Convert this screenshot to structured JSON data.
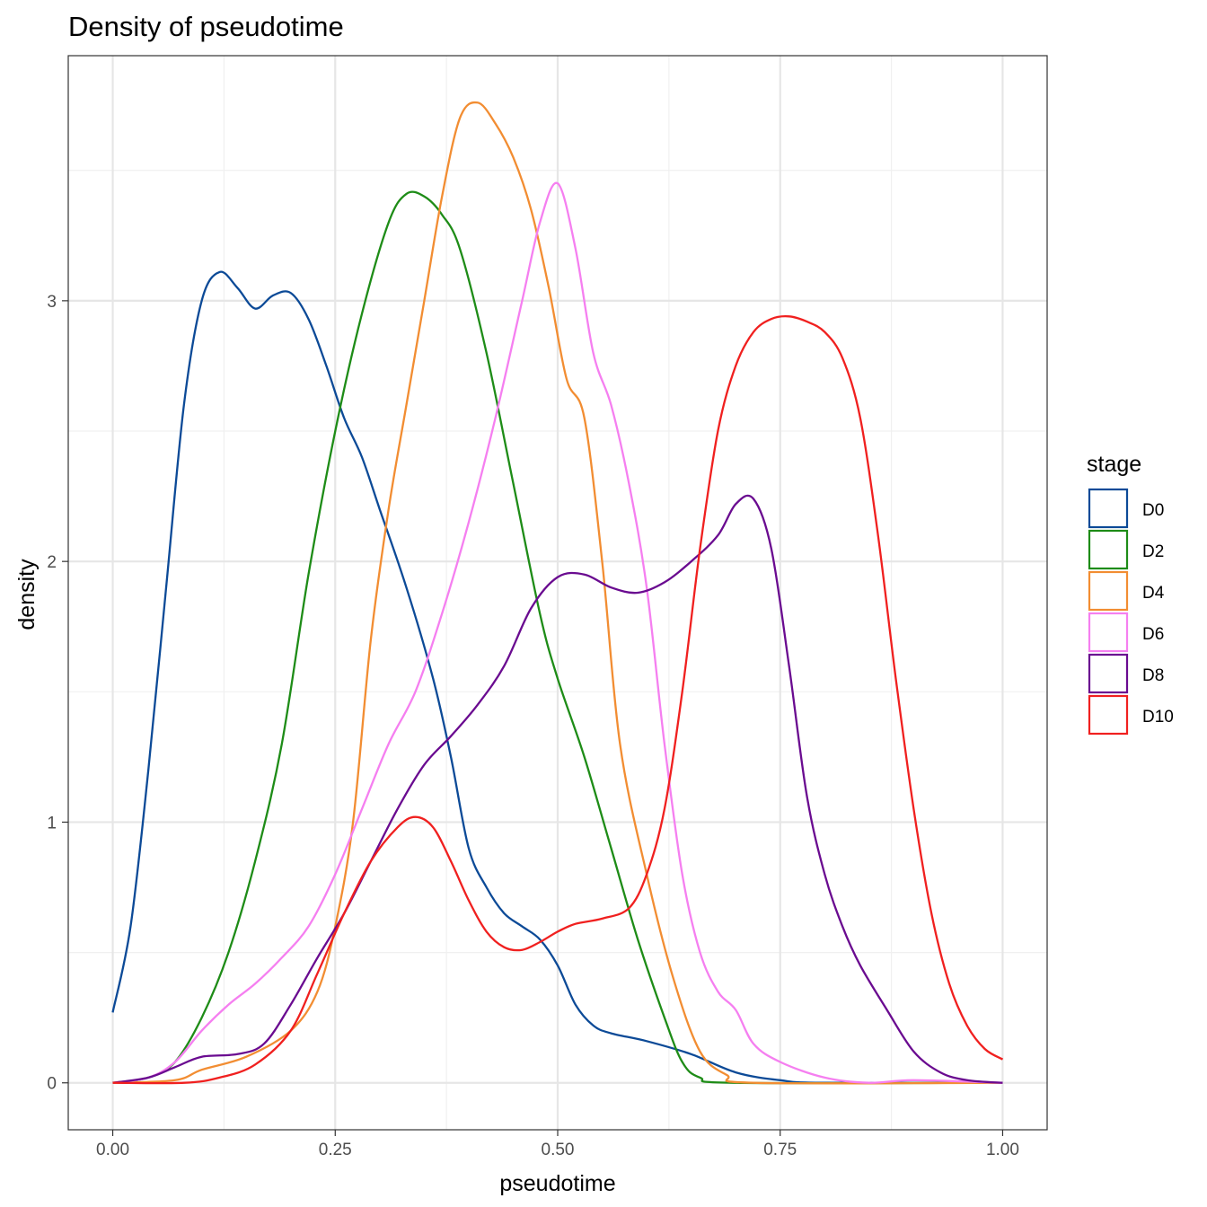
{
  "chart_data": {
    "type": "line",
    "title": "Density of pseudotime",
    "xlabel": "pseudotime",
    "ylabel": "density",
    "xlim": [
      -0.05,
      1.05
    ],
    "ylim": [
      -0.18,
      3.94
    ],
    "x_ticks": [
      0.0,
      0.25,
      0.5,
      0.75,
      1.0
    ],
    "x_tick_labels": [
      "0.00",
      "0.25",
      "0.50",
      "0.75",
      "1.00"
    ],
    "y_ticks": [
      0,
      1,
      2,
      3
    ],
    "y_tick_labels": [
      "0",
      "1",
      "2",
      "3"
    ],
    "grid": true,
    "legend_position": "right",
    "legend_title": "stage",
    "series": [
      {
        "name": "D0",
        "color": "#0c4a97",
        "points": [
          [
            0.0,
            0.27
          ],
          [
            0.02,
            0.6
          ],
          [
            0.04,
            1.2
          ],
          [
            0.06,
            1.9
          ],
          [
            0.08,
            2.6
          ],
          [
            0.1,
            3.0
          ],
          [
            0.12,
            3.11
          ],
          [
            0.14,
            3.05
          ],
          [
            0.16,
            2.97
          ],
          [
            0.18,
            3.02
          ],
          [
            0.2,
            3.03
          ],
          [
            0.22,
            2.93
          ],
          [
            0.24,
            2.75
          ],
          [
            0.26,
            2.55
          ],
          [
            0.28,
            2.4
          ],
          [
            0.3,
            2.2
          ],
          [
            0.33,
            1.9
          ],
          [
            0.36,
            1.55
          ],
          [
            0.38,
            1.25
          ],
          [
            0.4,
            0.9
          ],
          [
            0.42,
            0.75
          ],
          [
            0.44,
            0.65
          ],
          [
            0.46,
            0.6
          ],
          [
            0.48,
            0.55
          ],
          [
            0.5,
            0.45
          ],
          [
            0.52,
            0.3
          ],
          [
            0.54,
            0.22
          ],
          [
            0.56,
            0.19
          ],
          [
            0.6,
            0.16
          ],
          [
            0.65,
            0.11
          ],
          [
            0.7,
            0.04
          ],
          [
            0.75,
            0.01
          ],
          [
            0.8,
            0.0
          ],
          [
            1.0,
            0.0
          ]
        ]
      },
      {
        "name": "D2",
        "color": "#1e8c17",
        "points": [
          [
            0.0,
            0.0
          ],
          [
            0.04,
            0.02
          ],
          [
            0.07,
            0.08
          ],
          [
            0.1,
            0.25
          ],
          [
            0.13,
            0.5
          ],
          [
            0.16,
            0.85
          ],
          [
            0.19,
            1.3
          ],
          [
            0.22,
            1.95
          ],
          [
            0.25,
            2.5
          ],
          [
            0.28,
            2.95
          ],
          [
            0.31,
            3.3
          ],
          [
            0.33,
            3.41
          ],
          [
            0.35,
            3.4
          ],
          [
            0.37,
            3.33
          ],
          [
            0.39,
            3.2
          ],
          [
            0.42,
            2.8
          ],
          [
            0.45,
            2.3
          ],
          [
            0.48,
            1.8
          ],
          [
            0.5,
            1.55
          ],
          [
            0.53,
            1.25
          ],
          [
            0.56,
            0.9
          ],
          [
            0.59,
            0.55
          ],
          [
            0.62,
            0.25
          ],
          [
            0.64,
            0.08
          ],
          [
            0.66,
            0.02
          ],
          [
            0.7,
            0.0
          ],
          [
            1.0,
            0.0
          ]
        ]
      },
      {
        "name": "D4",
        "color": "#f28d32",
        "points": [
          [
            0.0,
            0.0
          ],
          [
            0.07,
            0.01
          ],
          [
            0.1,
            0.05
          ],
          [
            0.15,
            0.1
          ],
          [
            0.2,
            0.2
          ],
          [
            0.23,
            0.35
          ],
          [
            0.25,
            0.6
          ],
          [
            0.27,
            1.0
          ],
          [
            0.29,
            1.7
          ],
          [
            0.31,
            2.2
          ],
          [
            0.33,
            2.6
          ],
          [
            0.35,
            3.0
          ],
          [
            0.37,
            3.4
          ],
          [
            0.39,
            3.7
          ],
          [
            0.41,
            3.76
          ],
          [
            0.43,
            3.68
          ],
          [
            0.45,
            3.55
          ],
          [
            0.47,
            3.35
          ],
          [
            0.49,
            3.05
          ],
          [
            0.51,
            2.7
          ],
          [
            0.53,
            2.55
          ],
          [
            0.55,
            2.0
          ],
          [
            0.57,
            1.3
          ],
          [
            0.6,
            0.8
          ],
          [
            0.63,
            0.4
          ],
          [
            0.66,
            0.12
          ],
          [
            0.69,
            0.03
          ],
          [
            0.72,
            0.0
          ],
          [
            1.0,
            0.0
          ]
        ]
      },
      {
        "name": "D6",
        "color": "#f57ff0",
        "points": [
          [
            0.0,
            0.0
          ],
          [
            0.04,
            0.02
          ],
          [
            0.07,
            0.08
          ],
          [
            0.1,
            0.2
          ],
          [
            0.13,
            0.3
          ],
          [
            0.16,
            0.38
          ],
          [
            0.19,
            0.48
          ],
          [
            0.22,
            0.6
          ],
          [
            0.25,
            0.8
          ],
          [
            0.28,
            1.05
          ],
          [
            0.31,
            1.3
          ],
          [
            0.34,
            1.5
          ],
          [
            0.37,
            1.8
          ],
          [
            0.4,
            2.15
          ],
          [
            0.43,
            2.55
          ],
          [
            0.46,
            3.0
          ],
          [
            0.48,
            3.3
          ],
          [
            0.5,
            3.45
          ],
          [
            0.52,
            3.2
          ],
          [
            0.54,
            2.8
          ],
          [
            0.56,
            2.6
          ],
          [
            0.58,
            2.3
          ],
          [
            0.6,
            1.9
          ],
          [
            0.62,
            1.3
          ],
          [
            0.64,
            0.8
          ],
          [
            0.66,
            0.5
          ],
          [
            0.68,
            0.35
          ],
          [
            0.7,
            0.28
          ],
          [
            0.72,
            0.15
          ],
          [
            0.75,
            0.08
          ],
          [
            0.8,
            0.02
          ],
          [
            0.85,
            0.0
          ],
          [
            0.9,
            0.01
          ],
          [
            1.0,
            0.0
          ]
        ]
      },
      {
        "name": "D8",
        "color": "#6a0b90",
        "points": [
          [
            0.0,
            0.0
          ],
          [
            0.04,
            0.02
          ],
          [
            0.07,
            0.06
          ],
          [
            0.1,
            0.1
          ],
          [
            0.14,
            0.11
          ],
          [
            0.17,
            0.15
          ],
          [
            0.2,
            0.3
          ],
          [
            0.23,
            0.48
          ],
          [
            0.26,
            0.65
          ],
          [
            0.29,
            0.85
          ],
          [
            0.32,
            1.05
          ],
          [
            0.35,
            1.22
          ],
          [
            0.38,
            1.33
          ],
          [
            0.41,
            1.45
          ],
          [
            0.44,
            1.6
          ],
          [
            0.47,
            1.82
          ],
          [
            0.5,
            1.94
          ],
          [
            0.53,
            1.95
          ],
          [
            0.56,
            1.9
          ],
          [
            0.59,
            1.88
          ],
          [
            0.62,
            1.92
          ],
          [
            0.65,
            2.0
          ],
          [
            0.68,
            2.1
          ],
          [
            0.7,
            2.22
          ],
          [
            0.72,
            2.24
          ],
          [
            0.74,
            2.05
          ],
          [
            0.76,
            1.6
          ],
          [
            0.78,
            1.1
          ],
          [
            0.8,
            0.8
          ],
          [
            0.82,
            0.6
          ],
          [
            0.84,
            0.45
          ],
          [
            0.87,
            0.28
          ],
          [
            0.9,
            0.12
          ],
          [
            0.93,
            0.04
          ],
          [
            0.96,
            0.01
          ],
          [
            1.0,
            0.0
          ]
        ]
      },
      {
        "name": "D10",
        "color": "#f0201f",
        "points": [
          [
            0.0,
            0.0
          ],
          [
            0.08,
            0.0
          ],
          [
            0.12,
            0.02
          ],
          [
            0.16,
            0.07
          ],
          [
            0.2,
            0.2
          ],
          [
            0.23,
            0.42
          ],
          [
            0.26,
            0.65
          ],
          [
            0.29,
            0.85
          ],
          [
            0.32,
            0.98
          ],
          [
            0.34,
            1.02
          ],
          [
            0.36,
            0.98
          ],
          [
            0.38,
            0.85
          ],
          [
            0.4,
            0.7
          ],
          [
            0.42,
            0.58
          ],
          [
            0.44,
            0.52
          ],
          [
            0.46,
            0.51
          ],
          [
            0.48,
            0.54
          ],
          [
            0.5,
            0.58
          ],
          [
            0.52,
            0.61
          ],
          [
            0.55,
            0.63
          ],
          [
            0.58,
            0.67
          ],
          [
            0.6,
            0.8
          ],
          [
            0.62,
            1.05
          ],
          [
            0.64,
            1.5
          ],
          [
            0.66,
            2.05
          ],
          [
            0.68,
            2.5
          ],
          [
            0.7,
            2.75
          ],
          [
            0.72,
            2.88
          ],
          [
            0.74,
            2.93
          ],
          [
            0.76,
            2.94
          ],
          [
            0.78,
            2.92
          ],
          [
            0.8,
            2.88
          ],
          [
            0.82,
            2.78
          ],
          [
            0.84,
            2.55
          ],
          [
            0.86,
            2.1
          ],
          [
            0.88,
            1.55
          ],
          [
            0.9,
            1.05
          ],
          [
            0.92,
            0.65
          ],
          [
            0.94,
            0.38
          ],
          [
            0.96,
            0.22
          ],
          [
            0.98,
            0.13
          ],
          [
            1.0,
            0.09
          ]
        ]
      }
    ]
  }
}
